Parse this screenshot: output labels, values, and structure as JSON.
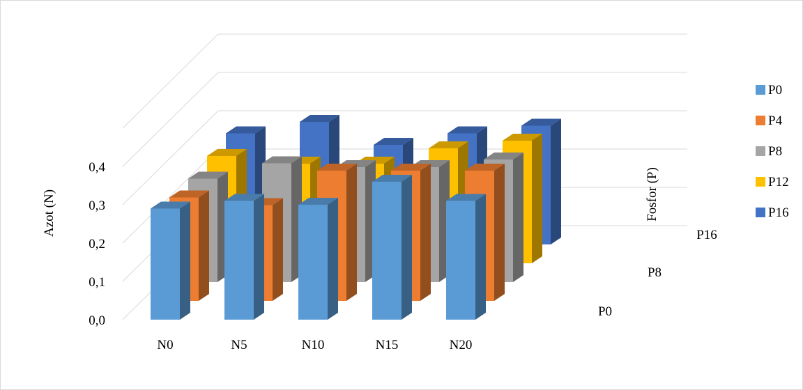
{
  "chart_data": {
    "type": "bar",
    "subtype": "3d-column",
    "categories": [
      "N0",
      "N5",
      "N10",
      "N15",
      "N20"
    ],
    "series": [
      {
        "name": "P0",
        "color": "#5b9bd5",
        "values": [
          0.29,
          0.31,
          0.3,
          0.36,
          0.31
        ]
      },
      {
        "name": "P4",
        "color": "#ed7d31",
        "values": [
          0.27,
          0.25,
          0.34,
          0.34,
          0.34
        ]
      },
      {
        "name": "P8",
        "color": "#a5a5a5",
        "values": [
          0.27,
          0.31,
          0.3,
          0.3,
          0.32
        ]
      },
      {
        "name": "P12",
        "color": "#ffc000",
        "values": [
          0.28,
          0.26,
          0.26,
          0.3,
          0.32
        ]
      },
      {
        "name": "P16",
        "color": "#4472c4",
        "values": [
          0.29,
          0.32,
          0.26,
          0.29,
          0.31
        ]
      }
    ],
    "depth_labels": [
      "P0",
      "P8",
      "P16"
    ],
    "ylabel": "Azot (N)",
    "zlabel": "Fosfor (P)",
    "xlabel": "",
    "yticks": [
      "0,0",
      "0,1",
      "0,2",
      "0,3",
      "0,4"
    ],
    "ylim": [
      0,
      0.5
    ],
    "grid": true,
    "legend_position": "right"
  }
}
